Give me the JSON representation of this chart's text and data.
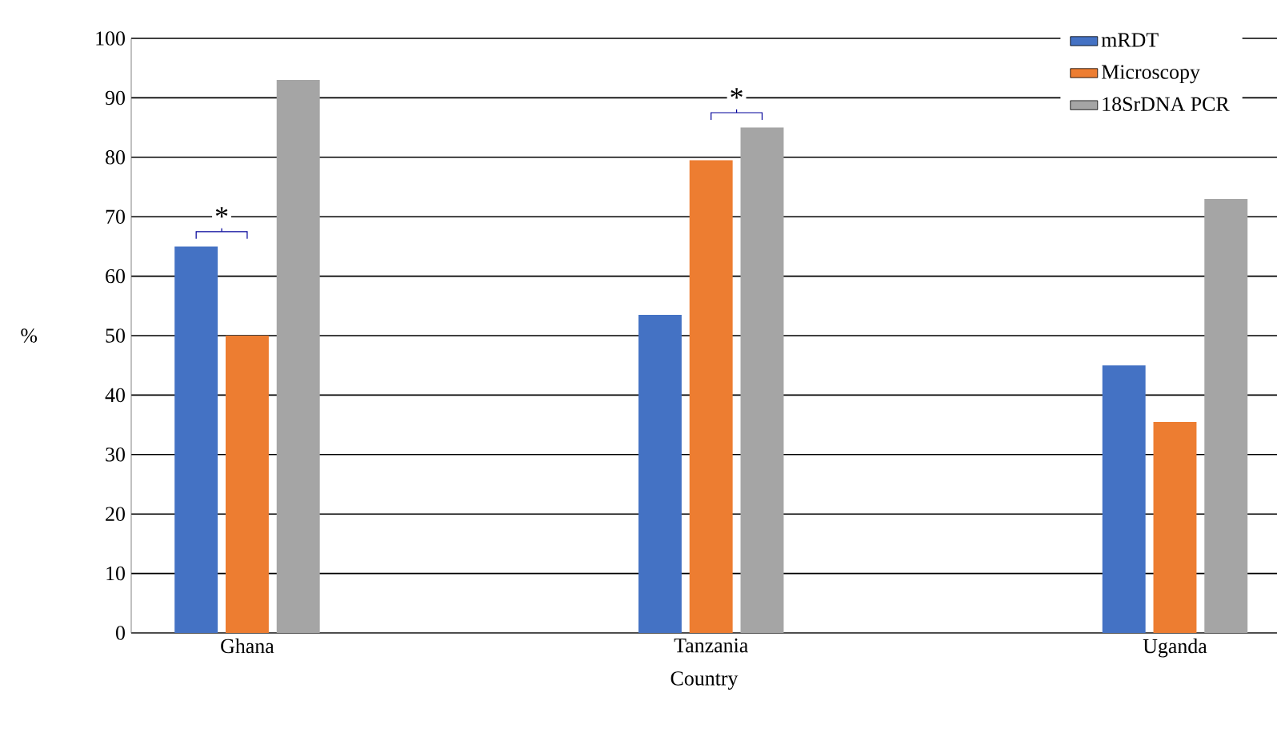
{
  "chart_data": {
    "type": "bar",
    "xlabel": "Country",
    "ylabel": "%",
    "categories": [
      "Ghana",
      "Tanzania",
      "Uganda"
    ],
    "series": [
      {
        "name": "mRDT",
        "color": "#4472c4",
        "values": [
          65,
          53.5,
          45
        ]
      },
      {
        "name": "Microscopy",
        "color": "#ed7d31",
        "values": [
          50,
          79.5,
          35.5
        ]
      },
      {
        "name": "18SrDNA PCR",
        "color": "#a5a5a5",
        "values": [
          93,
          85,
          73
        ]
      }
    ],
    "ylim": [
      0,
      100
    ],
    "yticks": [
      0,
      10,
      20,
      30,
      40,
      50,
      60,
      70,
      80,
      90,
      100
    ],
    "grid": "y",
    "legend": "top right",
    "annotations": [
      "*",
      "*"
    ]
  }
}
